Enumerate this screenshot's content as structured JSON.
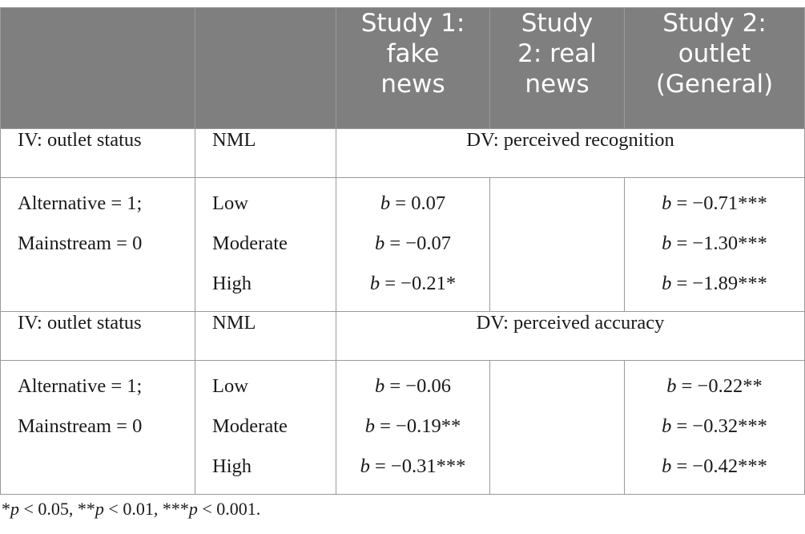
{
  "header": {
    "columns": [
      "",
      "",
      "Study 1: fake news",
      "Study 2: real news",
      "Study 2: outlet (General)"
    ],
    "col3_lines": [
      "Study 1:",
      "fake",
      "news"
    ],
    "col4_lines": [
      "Study",
      "2: real",
      "news"
    ],
    "col5_lines": [
      "Study 2:",
      "outlet",
      "(General)"
    ]
  },
  "section1": {
    "iv_label": "IV: outlet status",
    "moderator_label": "NML",
    "dv_label": "DV: perceived recognition",
    "iv_values": [
      "Alternative = 1;",
      "Mainstream = 0"
    ],
    "levels": [
      "Low",
      "Moderate",
      "High"
    ],
    "study1_fake": [
      {
        "coef": "b",
        "value": " = 0.07"
      },
      {
        "coef": "b",
        "value": " = −0.07"
      },
      {
        "coef": "b",
        "value": " = −0.21*"
      }
    ],
    "study2_real": [],
    "study2_outlet": [
      {
        "coef": "b",
        "value": " = −0.71***"
      },
      {
        "coef": "b",
        "value": " = −1.30***"
      },
      {
        "coef": "b",
        "value": " = −1.89***"
      }
    ]
  },
  "section2": {
    "iv_label": "IV: outlet status",
    "moderator_label": "NML",
    "dv_label": "DV: perceived accuracy",
    "iv_values": [
      "Alternative = 1;",
      "Mainstream = 0"
    ],
    "levels": [
      "Low",
      "Moderate",
      "High"
    ],
    "study1_fake": [
      {
        "coef": "b",
        "value": " = −0.06"
      },
      {
        "coef": "b",
        "value": " = −0.19**"
      },
      {
        "coef": "b",
        "value": " = −0.31***"
      }
    ],
    "study2_real": [],
    "study2_outlet": [
      {
        "coef": "b",
        "value": " = −0.22**"
      },
      {
        "coef": "b",
        "value": " = −0.32***"
      },
      {
        "coef": "b",
        "value": " = −0.42***"
      }
    ]
  },
  "footnote": {
    "parts": [
      {
        "text": "*",
        "italic": false
      },
      {
        "text": "p",
        "italic": true
      },
      {
        "text": " < 0.05, **",
        "italic": false
      },
      {
        "text": "p",
        "italic": true
      },
      {
        "text": " < 0.01, ***",
        "italic": false
      },
      {
        "text": "p",
        "italic": true
      },
      {
        "text": " < 0.001.",
        "italic": false
      }
    ]
  },
  "colors": {
    "header_bg": "#7f7f7f",
    "header_text": "#ffffff",
    "border": "#9a9a9a"
  }
}
